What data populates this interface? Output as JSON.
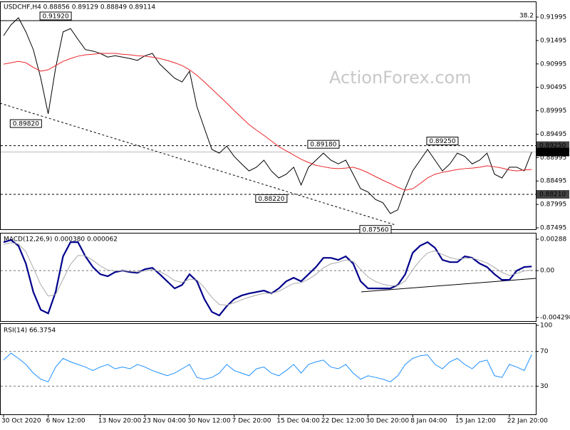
{
  "watermark": "ActionForex.com",
  "chart_data": [
    {
      "type": "line",
      "title": "USDCHF,H4  0.88856 0.89129 0.88849 0.89114",
      "ylim": [
        0.87465,
        0.92284
      ],
      "yticks": [
        0.91995,
        0.91495,
        0.90995,
        0.90495,
        0.89995,
        0.89495,
        0.88995,
        0.88495,
        0.87995,
        0.87495
      ],
      "grid": false,
      "series": [
        {
          "color": "#000000",
          "values": [
            0.916,
            0.9183,
            0.9198,
            0.9168,
            0.913,
            0.9069,
            0.8993,
            0.9091,
            0.9168,
            0.9175,
            0.9152,
            0.913,
            0.9127,
            0.9122,
            0.9114,
            0.9117,
            0.9114,
            0.9111,
            0.9107,
            0.9117,
            0.9122,
            0.9099,
            0.9084,
            0.9069,
            0.9061,
            0.9084,
            0.9008,
            0.8962,
            0.8917,
            0.8909,
            0.8924,
            0.8902,
            0.8886,
            0.8871,
            0.8879,
            0.8894,
            0.8871,
            0.8856,
            0.8864,
            0.8879,
            0.8841,
            0.8879,
            0.8894,
            0.8909,
            0.8894,
            0.8886,
            0.8894,
            0.8864,
            0.8833,
            0.8826,
            0.881,
            0.8803,
            0.878,
            0.8788,
            0.8833,
            0.8871,
            0.8894,
            0.8917,
            0.8894,
            0.8871,
            0.8886,
            0.8909,
            0.8902,
            0.8886,
            0.8894,
            0.8909,
            0.8864,
            0.8856,
            0.8879,
            0.8879,
            0.8871,
            0.89114
          ]
        },
        {
          "color": "#e8262a",
          "values": [
            0.9099,
            0.9102,
            0.9105,
            0.9102,
            0.9092,
            0.9084,
            0.9087,
            0.9096,
            0.9105,
            0.9111,
            0.9116,
            0.9119,
            0.912,
            0.9122,
            0.9122,
            0.9122,
            0.912,
            0.9119,
            0.9117,
            0.9116,
            0.9114,
            0.9111,
            0.9107,
            0.9102,
            0.9096,
            0.9087,
            0.9075,
            0.9061,
            0.9046,
            0.9031,
            0.9016,
            0.9,
            0.8985,
            0.897,
            0.8958,
            0.8947,
            0.8935,
            0.8923,
            0.8914,
            0.8905,
            0.8896,
            0.8889,
            0.8883,
            0.888,
            0.8877,
            0.8876,
            0.8877,
            0.8879,
            0.8874,
            0.8867,
            0.8859,
            0.8851,
            0.8844,
            0.8836,
            0.883,
            0.8833,
            0.8844,
            0.8856,
            0.8864,
            0.8868,
            0.8871,
            0.8874,
            0.8876,
            0.8877,
            0.8879,
            0.8882,
            0.888,
            0.8877,
            0.8873,
            0.8871,
            0.8873,
            0.8874
          ]
        }
      ],
      "levels": [
        {
          "value": 0.9192,
          "label": "38.2",
          "style": "solid"
        },
        {
          "value": 0.8925,
          "label": "0.89250",
          "style": "dashed"
        },
        {
          "value": 0.89114,
          "label": "0.89114",
          "style": "current"
        },
        {
          "value": 0.8821,
          "label": "0.88210",
          "style": "dashed"
        }
      ],
      "annotations": [
        {
          "value": 0.9192,
          "label": "0.91920",
          "index": 7,
          "side": "top"
        },
        {
          "value": 0.8982,
          "label": "0.89820",
          "index": 3,
          "side": "bottom"
        },
        {
          "value": 0.8918,
          "label": "0.89180",
          "index": 43,
          "side": "top"
        },
        {
          "value": 0.8822,
          "label": "0.88220",
          "index": 36,
          "side": "bottom"
        },
        {
          "value": 0.8925,
          "label": "0.89250",
          "index": 59,
          "side": "top"
        },
        {
          "value": 0.8756,
          "label": "0.87560",
          "index": 50,
          "side": "bottom"
        }
      ]
    },
    {
      "type": "line",
      "title": "MACD(12,26,9) 0.000380 0.000062",
      "ylim": [
        -0.004298,
        0.00288
      ],
      "yticks": [
        0.00288,
        {
          "value": 0,
          "label": "0.00"
        },
        -0.004298
      ],
      "grid": true,
      "series": [
        {
          "color": "#00008b",
          "values": [
            0.00261,
            0.00281,
            0.00228,
            0.00065,
            -0.00196,
            -0.00359,
            -0.00392,
            -0.00196,
            0.00131,
            0.00261,
            0.00261,
            0.00131,
            0.00033,
            -0.00033,
            -0.00052,
            -0.00013,
            0,
            -0.00013,
            -0.0002,
            0.00013,
            0.00026,
            -0.00033,
            -0.00098,
            -0.00163,
            -0.00131,
            -0.00033,
            -0.00098,
            -0.00261,
            -0.00378,
            -0.00411,
            -0.00326,
            -0.00261,
            -0.00228,
            -0.00209,
            -0.00196,
            -0.00183,
            -0.00209,
            -0.00163,
            -0.00098,
            -0.00065,
            -0.00098,
            -0.00033,
            0.00033,
            0.00117,
            0.00117,
            0.00098,
            0.00131,
            0.00065,
            -0.00098,
            -0.00163,
            -0.00163,
            -0.00163,
            -0.00163,
            -0.00131,
            -0.00033,
            0.00163,
            0.00228,
            0.00261,
            0.00209,
            0.00098,
            0.00078,
            0.00078,
            0.00131,
            0.00117,
            0.00065,
            0.00033,
            -0.00033,
            -0.00085,
            -0.00085,
            0,
            0.00033,
            0.00038
          ]
        },
        {
          "color": "#a9a9a9",
          "values": [
            0.0024,
            0.00256,
            0.00245,
            0.00173,
            0.00025,
            -0.00129,
            -0.00234,
            -0.00219,
            -0.00079,
            0.00057,
            0.00139,
            0.00136,
            0.00095,
            0.00044,
            6e-05,
            -2e-05,
            -1e-05,
            -6e-05,
            -0.00012,
            -2e-05,
            9e-05,
            -8e-05,
            -0.00044,
            -0.00092,
            -0.00108,
            -0.00078,
            -0.00086,
            -0.00156,
            -0.00245,
            -0.00311,
            -0.00317,
            -0.00295,
            -0.00268,
            -0.00244,
            -0.00225,
            -0.00208,
            -0.00208,
            -0.0019,
            -0.00153,
            -0.00118,
            -0.0011,
            -0.00079,
            -0.00034,
            0.00026,
            0.00062,
            0.00076,
            0.00098,
            0.00085,
            0.00012,
            -0.00058,
            -0.001,
            -0.00125,
            -0.0014,
            -0.00136,
            -0.00095,
            8e-05,
            0.00096,
            0.00162,
            0.00181,
            0.00148,
            0.0012,
            0.00103,
            0.00114,
            0.00115,
            0.00095,
            0.0007,
            0.00029,
            -0.00017,
            -0.00044,
            -0.00026,
            -2e-05,
            6e-05
          ]
        }
      ]
    },
    {
      "type": "line",
      "title": "RSI(14) 66.3754",
      "ylim": [
        0,
        100
      ],
      "yticks": [
        100,
        70,
        30
      ],
      "grid": true,
      "categories": [
        "30 Oct 2020",
        null,
        null,
        null,
        null,
        null,
        "6 Nov 12:00",
        null,
        null,
        null,
        null,
        null,
        null,
        "13 Nov 20:00",
        null,
        null,
        null,
        null,
        null,
        "23 Nov 04:00",
        null,
        null,
        null,
        null,
        null,
        "30 Nov 12:00",
        null,
        null,
        null,
        null,
        null,
        "7 Dec 20:00",
        null,
        null,
        null,
        null,
        null,
        "15 Dec 04:00",
        null,
        null,
        null,
        null,
        null,
        "22 Dec 12:00",
        null,
        null,
        null,
        null,
        null,
        "30 Dec 20:00",
        null,
        null,
        null,
        null,
        null,
        "8 Jan 04:00",
        null,
        null,
        null,
        null,
        null,
        "15 Jan 12:00",
        null,
        null,
        null,
        null,
        null,
        null,
        "22 Jan 20:00",
        null,
        null,
        null
      ],
      "series": [
        {
          "color": "#1e90ff",
          "values": [
            60,
            68,
            62,
            55,
            45,
            38,
            35,
            52,
            62,
            58,
            55,
            52,
            48,
            52,
            55,
            50,
            52,
            50,
            55,
            52,
            48,
            45,
            42,
            45,
            50,
            55,
            40,
            38,
            40,
            45,
            55,
            48,
            45,
            42,
            50,
            52,
            45,
            42,
            48,
            55,
            45,
            55,
            58,
            60,
            52,
            50,
            55,
            45,
            38,
            42,
            40,
            38,
            35,
            42,
            55,
            62,
            65,
            66,
            55,
            50,
            58,
            62,
            55,
            50,
            58,
            60,
            42,
            40,
            55,
            52,
            48,
            66.3754
          ]
        }
      ]
    }
  ]
}
